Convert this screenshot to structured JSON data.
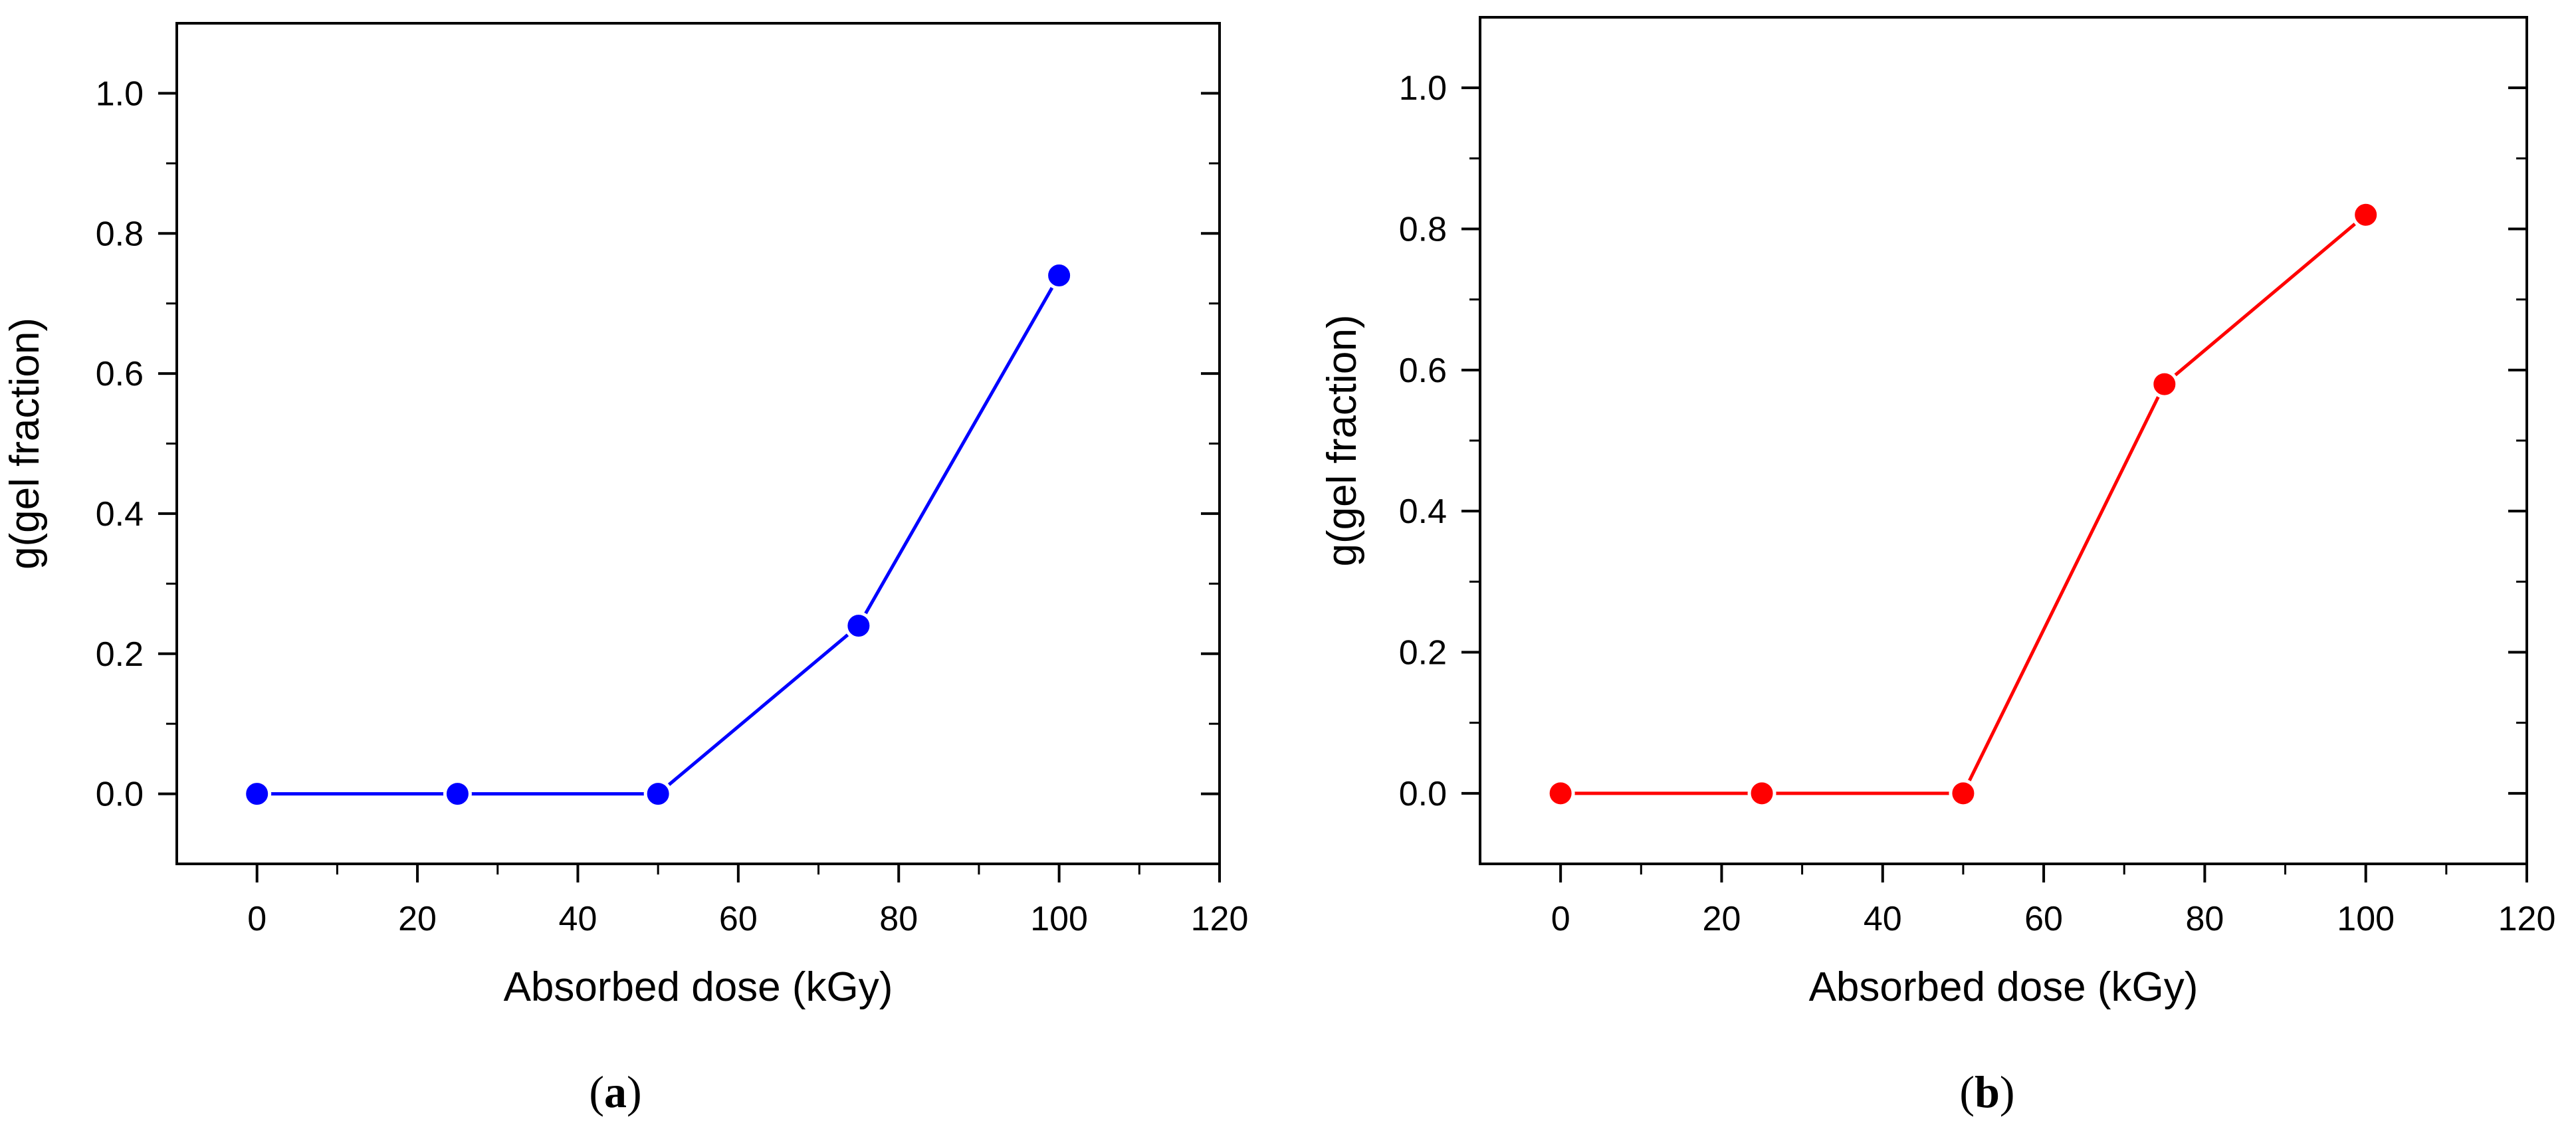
{
  "chart_data": [
    {
      "type": "line",
      "panel_label": "a",
      "xlabel": "Absorbed dose (kGy)",
      "ylabel": "g(gel fraction)",
      "xlim": [
        -10,
        120
      ],
      "ylim": [
        -0.1,
        1.1
      ],
      "xticks": [
        0,
        20,
        40,
        60,
        80,
        100,
        120
      ],
      "xtick_labels": [
        "0",
        "20",
        "40",
        "60",
        "80",
        "100",
        "120"
      ],
      "yticks": [
        0.0,
        0.2,
        0.4,
        0.6,
        0.8,
        1.0
      ],
      "ytick_labels": [
        "0.0",
        "0.2",
        "0.4",
        "0.6",
        "0.8",
        "1.0"
      ],
      "grid": false,
      "series": [
        {
          "name": "gel fraction",
          "color": "#0000FF",
          "x": [
            0,
            25,
            50,
            75,
            100
          ],
          "y": [
            0.0,
            0.0,
            0.0,
            0.24,
            0.74
          ]
        }
      ]
    },
    {
      "type": "line",
      "panel_label": "b",
      "xlabel": "Absorbed dose (kGy)",
      "ylabel": "g(gel fraction)",
      "xlim": [
        -10,
        120
      ],
      "ylim": [
        -0.1,
        1.1
      ],
      "xticks": [
        0,
        20,
        40,
        60,
        80,
        100,
        120
      ],
      "xtick_labels": [
        "0",
        "20",
        "40",
        "60",
        "80",
        "100",
        "120"
      ],
      "yticks": [
        0.0,
        0.2,
        0.4,
        0.6,
        0.8,
        1.0
      ],
      "ytick_labels": [
        "0.0",
        "0.2",
        "0.4",
        "0.6",
        "0.8",
        "1.0"
      ],
      "grid": false,
      "series": [
        {
          "name": "gel fraction",
          "color": "#FF0000",
          "x": [
            0,
            25,
            50,
            75,
            100
          ],
          "y": [
            0.0,
            0.0,
            0.0,
            0.58,
            0.82
          ]
        }
      ]
    }
  ]
}
